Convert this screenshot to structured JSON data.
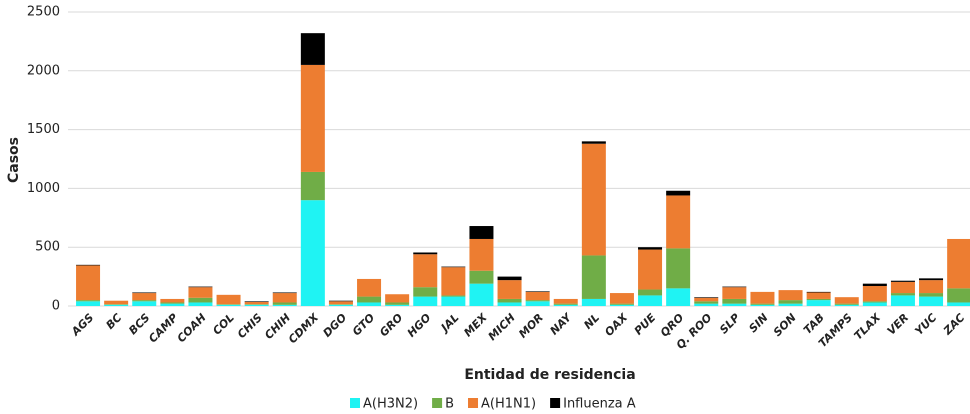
{
  "chart_data": {
    "type": "stacked_bar",
    "y_label": "Casos",
    "x_label": "Entidad de residencia",
    "categories": [
      "AGS",
      "BC",
      "BCS",
      "CAMP",
      "COAH",
      "COL",
      "CHIS",
      "CHIH",
      "CDMX",
      "DGO",
      "GTO",
      "GRO",
      "HGO",
      "JAL",
      "MEX",
      "MICH",
      "MOR",
      "NAY",
      "NL",
      "OAX",
      "PUE",
      "QRO",
      "Q. ROO",
      "SLP",
      "SIN",
      "SON",
      "TAB",
      "TAMPS",
      "TLAX",
      "VER",
      "YUC",
      "ZAC"
    ],
    "series": [
      {
        "name": "A(H3N2)",
        "color": "#1ff3f3",
        "values": [
          40,
          10,
          40,
          20,
          30,
          10,
          10,
          10,
          900,
          10,
          30,
          10,
          80,
          80,
          190,
          30,
          40,
          10,
          60,
          10,
          90,
          150,
          20,
          20,
          10,
          20,
          50,
          10,
          30,
          90,
          80,
          30
        ]
      },
      {
        "name": "B",
        "color": "#70ad47",
        "values": [
          10,
          5,
          10,
          10,
          40,
          5,
          5,
          20,
          240,
          5,
          50,
          20,
          80,
          10,
          110,
          30,
          10,
          10,
          370,
          10,
          50,
          340,
          20,
          40,
          10,
          30,
          10,
          10,
          10,
          20,
          30,
          120
        ]
      },
      {
        "name": "A(H1N1)",
        "color": "#ed7d31",
        "values": [
          295,
          30,
          60,
          30,
          90,
          80,
          20,
          80,
          910,
          25,
          150,
          70,
          280,
          240,
          270,
          160,
          70,
          40,
          950,
          90,
          340,
          450,
          30,
          100,
          100,
          85,
          55,
          55,
          130,
          95,
          110,
          420
        ]
      },
      {
        "name": "Influenza A",
        "color": "#000000",
        "values": [
          5,
          0,
          5,
          0,
          5,
          0,
          5,
          5,
          270,
          5,
          0,
          0,
          15,
          5,
          110,
          30,
          5,
          0,
          20,
          0,
          20,
          40,
          5,
          5,
          0,
          0,
          5,
          0,
          20,
          10,
          15,
          0
        ]
      }
    ],
    "ylim": [
      0,
      2500
    ],
    "yticks": [
      0,
      500,
      1000,
      1500,
      2000,
      2500
    ],
    "grid": true,
    "legend": "bottom"
  }
}
